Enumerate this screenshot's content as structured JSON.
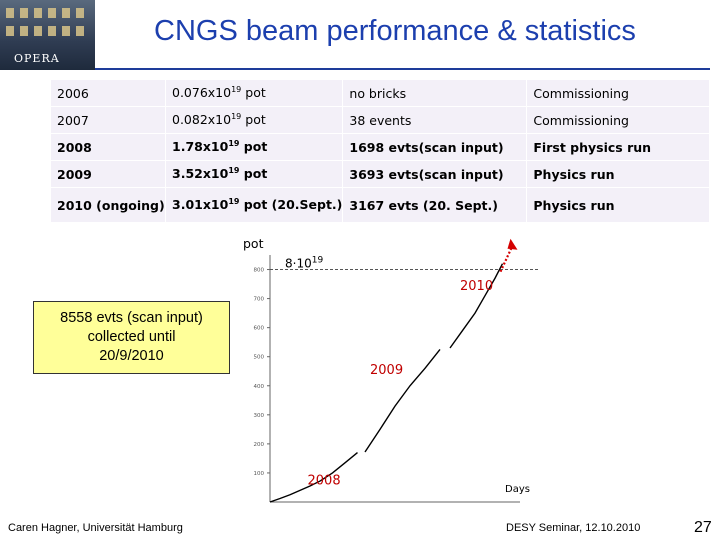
{
  "title": "CNGS beam performance & statistics",
  "logo_text": "OPERA",
  "table": {
    "rows": [
      {
        "year": "2006",
        "pot_base": "0.076x10",
        "pot_exp": "19",
        "pot_unit": " pot",
        "events": "no bricks",
        "status": "Commissioning",
        "bold": false
      },
      {
        "year": "2007",
        "pot_base": "0.082x10",
        "pot_exp": "19",
        "pot_unit": " pot",
        "events": "38 events",
        "status": "Commissioning",
        "bold": false
      },
      {
        "year": "2008",
        "pot_base": "1.78x10",
        "pot_exp": "19",
        "pot_unit": " pot",
        "events": "1698 evts(scan input)",
        "status": "First physics run",
        "bold": true
      },
      {
        "year": "2009",
        "pot_base": "3.52x10",
        "pot_exp": "19",
        "pot_unit": " pot",
        "events": "3693 evts(scan input)",
        "status": "Physics  run",
        "bold": true
      },
      {
        "year": "2010 (ongoing)",
        "pot_base": "3.01x10",
        "pot_exp": "19",
        "pot_unit": " pot (20.Sept.)",
        "events": "3167 evts (20. Sept.)",
        "status": "Physics  run",
        "bold": true
      }
    ]
  },
  "callout": {
    "lines": [
      "8558 evts (scan input)",
      "collected until",
      "20/9/2010"
    ]
  },
  "chart_data": {
    "type": "line",
    "ylabel": "pot",
    "xlabel": "Days",
    "y_ticks": [
      "100",
      "200",
      "300",
      "400",
      "500",
      "600",
      "700",
      "800"
    ],
    "ylim": [
      0,
      850
    ],
    "xlim": [
      0,
      100
    ],
    "annotation_value": "8·10",
    "annotation_exp": "19",
    "annotation_y": 800,
    "series": [
      {
        "name": "2008",
        "x": [
          0,
          4,
          8,
          12,
          16,
          20,
          25,
          30,
          35
        ],
        "y": [
          0,
          12,
          25,
          40,
          55,
          72,
          100,
          135,
          170
        ]
      },
      {
        "name": "2009",
        "x": [
          38,
          44,
          50,
          56,
          62,
          68
        ],
        "y": [
          172,
          250,
          330,
          400,
          460,
          525
        ]
      },
      {
        "name": "2010",
        "x": [
          72,
          77,
          82,
          86,
          90,
          93
        ],
        "y": [
          530,
          590,
          650,
          710,
          770,
          820
        ]
      }
    ],
    "series_labels": [
      {
        "text": "2008",
        "x": 15,
        "y": 60,
        "color": "#c00000"
      },
      {
        "text": "2009",
        "x": 40,
        "y": 440,
        "color": "#c00000"
      },
      {
        "text": "2010",
        "x": 76,
        "y": 730,
        "color": "#c00000"
      }
    ],
    "arrow_color": "#d40000",
    "line_color": "#000000"
  },
  "footer": {
    "left": "Caren Hagner, Universität Hamburg",
    "right": "DESY Seminar, 12.10.2010",
    "page": "27"
  }
}
